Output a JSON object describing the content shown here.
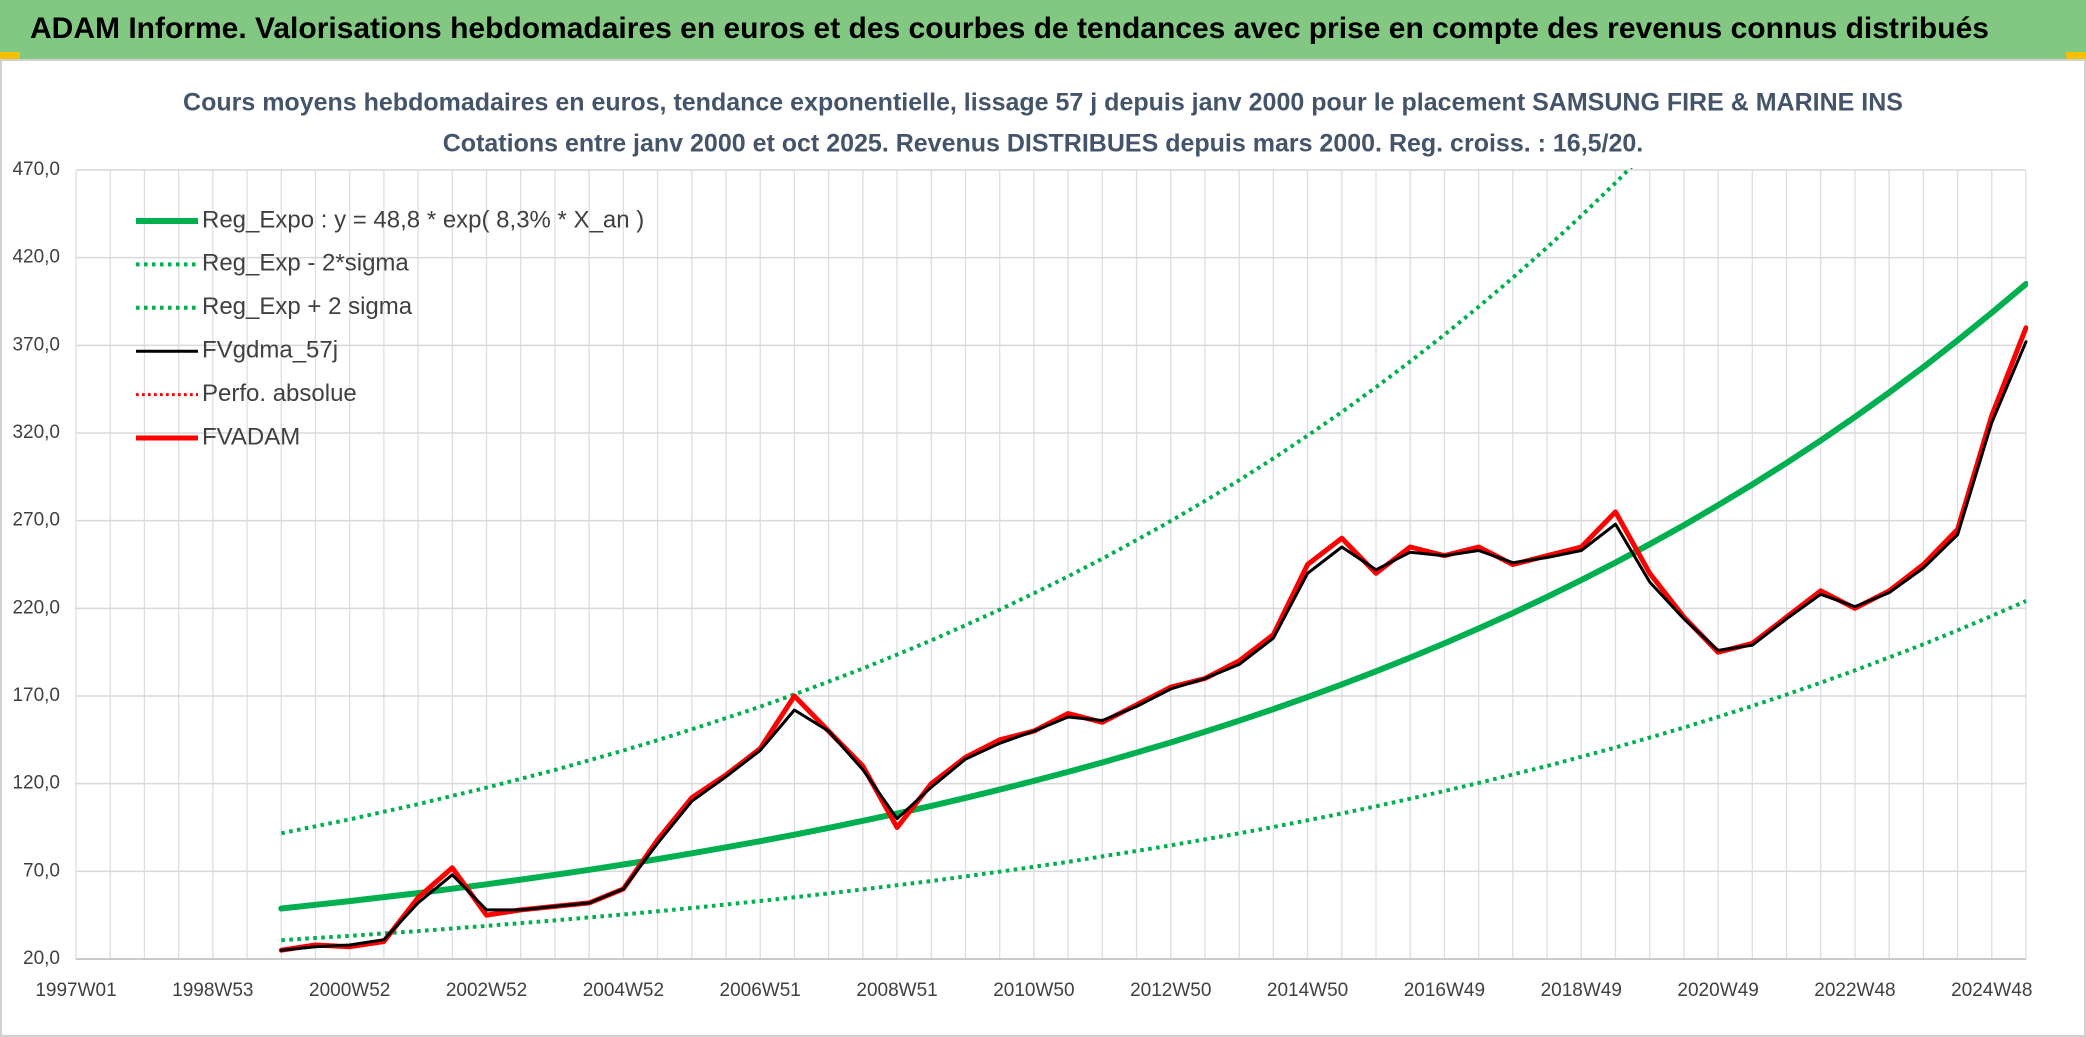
{
  "chart_data": {
    "type": "line",
    "header": "ADAM Informe. Valorisations hebdomadaires en euros et des courbes de tendances avec prise en compte des revenus connus distribués",
    "title": "Cours moyens hebdomadaires en euros, tendance exponentielle, lissage 57 j depuis janv 2000 pour le placement SAMSUNG FIRE & MARINE INS",
    "subtitle": "Cotations entre janv 2000 et oct 2025. Revenus DISTRIBUES depuis mars 2000. Reg. croiss. : 16,5/20.",
    "categories": [
      "1997W01",
      null,
      null,
      null,
      "1998W53",
      null,
      null,
      null,
      "2000W52",
      null,
      null,
      null,
      "2002W52",
      null,
      null,
      null,
      "2004W52",
      null,
      null,
      null,
      "2006W51",
      null,
      null,
      null,
      "2008W51",
      null,
      null,
      null,
      "2010W50",
      null,
      null,
      null,
      "2012W50",
      null,
      null,
      null,
      "2014W50",
      null,
      null,
      null,
      "2016W49",
      null,
      null,
      null,
      "2018W49",
      null,
      null,
      null,
      "2020W49",
      null,
      null,
      null,
      "2022W48",
      null,
      null,
      null,
      "2024W48",
      null
    ],
    "ylim": [
      20,
      470
    ],
    "yticks": [
      {
        "value": 20,
        "label": "20,0"
      },
      {
        "value": 70,
        "label": "70,0"
      },
      {
        "value": 120,
        "label": "120,0"
      },
      {
        "value": 170,
        "label": "170,0"
      },
      {
        "value": 220,
        "label": "220,0"
      },
      {
        "value": 270,
        "label": "270,0"
      },
      {
        "value": 320,
        "label": "320,0"
      },
      {
        "value": 370,
        "label": "370,0"
      },
      {
        "value": 420,
        "label": "420,0"
      },
      {
        "value": 470,
        "label": "470,0"
      }
    ],
    "grid": true,
    "legend": "top-left",
    "series": [
      {
        "name": "Reg_Expo : y = 48,8 * exp( 8,3% *  X_an )",
        "color": "#00b050",
        "style": "solid",
        "width": 6,
        "values": [
          null,
          null,
          null,
          null,
          null,
          null,
          48.8,
          50.9,
          53.0,
          55.3,
          57.6,
          60.1,
          62.6,
          65.3,
          68.0,
          70.9,
          73.9,
          77.0,
          80.3,
          83.7,
          87.2,
          90.9,
          94.8,
          98.8,
          103.0,
          107.3,
          111.9,
          116.6,
          121.6,
          126.7,
          132.1,
          137.7,
          143.5,
          149.6,
          155.9,
          162.5,
          169.4,
          176.6,
          184.1,
          191.9,
          200.0,
          208.5,
          217.3,
          226.5,
          236.1,
          246.1,
          256.6,
          267.4,
          278.8,
          290.6,
          302.9,
          315.7,
          329.1,
          343.1,
          357.6,
          372.8,
          388.6,
          405.0
        ]
      },
      {
        "name": "Reg_Exp - 2*sigma",
        "color": "#00b050",
        "style": "dotted",
        "width": 4,
        "values": [
          null,
          null,
          null,
          null,
          null,
          null,
          30.7,
          32.0,
          33.2,
          34.6,
          35.9,
          37.4,
          38.9,
          40.5,
          42.0,
          43.7,
          45.4,
          47.2,
          49.1,
          51.1,
          53.1,
          55.2,
          57.4,
          59.7,
          62.1,
          64.5,
          67.1,
          69.8,
          72.6,
          75.4,
          78.5,
          81.6,
          84.8,
          88.2,
          91.7,
          95.3,
          99.1,
          103.0,
          107.1,
          111.4,
          115.8,
          120.4,
          125.2,
          130.1,
          135.3,
          140.6,
          146.3,
          152.0,
          158.1,
          164.3,
          170.8,
          177.6,
          184.6,
          192.0,
          199.5,
          207.5,
          215.7,
          224.2
        ]
      },
      {
        "name": "Reg_Exp + 2 sigma",
        "color": "#00b050",
        "style": "dotted",
        "width": 4,
        "values": [
          null,
          null,
          null,
          null,
          null,
          null,
          91.7,
          95.7,
          99.6,
          104.0,
          108.3,
          113.0,
          117.7,
          122.8,
          127.8,
          133.3,
          138.9,
          144.8,
          151.0,
          157.4,
          163.9,
          170.9,
          178.2,
          185.7,
          193.6,
          201.7,
          210.4,
          219.2,
          228.6,
          238.2,
          248.3,
          258.9,
          269.8,
          281.2,
          293.1,
          305.5,
          318.5,
          332.0,
          346.1,
          360.8,
          376.0,
          392.0,
          408.5,
          425.8,
          443.9,
          462.7,
          482.4,
          502.7,
          null,
          null,
          null,
          null,
          null,
          null,
          null,
          null,
          null,
          null
        ]
      },
      {
        "name": "FVgdma_57j",
        "color": "#000000",
        "style": "solid",
        "width": 3,
        "values": [
          null,
          null,
          null,
          null,
          null,
          null,
          25,
          27,
          28,
          31,
          52,
          68,
          48,
          48,
          50,
          52,
          60,
          86,
          110,
          124,
          139,
          162,
          150,
          128,
          100,
          118,
          134,
          143,
          150,
          158,
          156,
          164,
          174,
          180,
          188,
          203,
          240,
          255,
          242,
          252,
          250,
          253,
          246,
          249,
          253,
          268,
          235,
          214,
          196,
          199,
          214,
          228,
          221,
          229,
          243,
          262,
          326,
          372
        ]
      },
      {
        "name": "Perfo. absolue",
        "color": "#ff0000",
        "style": "dotted",
        "width": 3,
        "values": [
          null,
          null,
          null,
          null,
          null,
          null,
          null,
          null,
          null,
          null,
          null,
          null,
          null,
          null,
          null,
          null,
          null,
          null,
          null,
          null,
          null,
          null,
          null,
          null,
          null,
          null,
          null,
          null,
          null,
          null,
          null,
          null,
          null,
          null,
          null,
          null,
          null,
          null,
          null,
          null,
          null,
          null,
          null,
          null,
          null,
          null,
          null,
          null,
          null,
          null,
          null,
          null,
          null,
          null,
          null,
          null,
          null,
          null
        ]
      },
      {
        "name": "FVADAM",
        "color": "#ff0000",
        "style": "solid",
        "width": 5,
        "values": [
          null,
          null,
          null,
          null,
          null,
          null,
          25,
          28,
          27,
          30,
          55,
          72,
          45,
          48,
          50,
          52,
          60,
          88,
          112,
          125,
          140,
          170,
          150,
          130,
          95,
          120,
          135,
          145,
          150,
          160,
          155,
          165,
          175,
          180,
          190,
          205,
          245,
          260,
          240,
          255,
          250,
          255,
          245,
          250,
          255,
          275,
          240,
          215,
          195,
          200,
          215,
          230,
          220,
          230,
          245,
          265,
          330,
          380
        ]
      }
    ],
    "draw_order": [
      1,
      2,
      0,
      4,
      5,
      3
    ]
  }
}
